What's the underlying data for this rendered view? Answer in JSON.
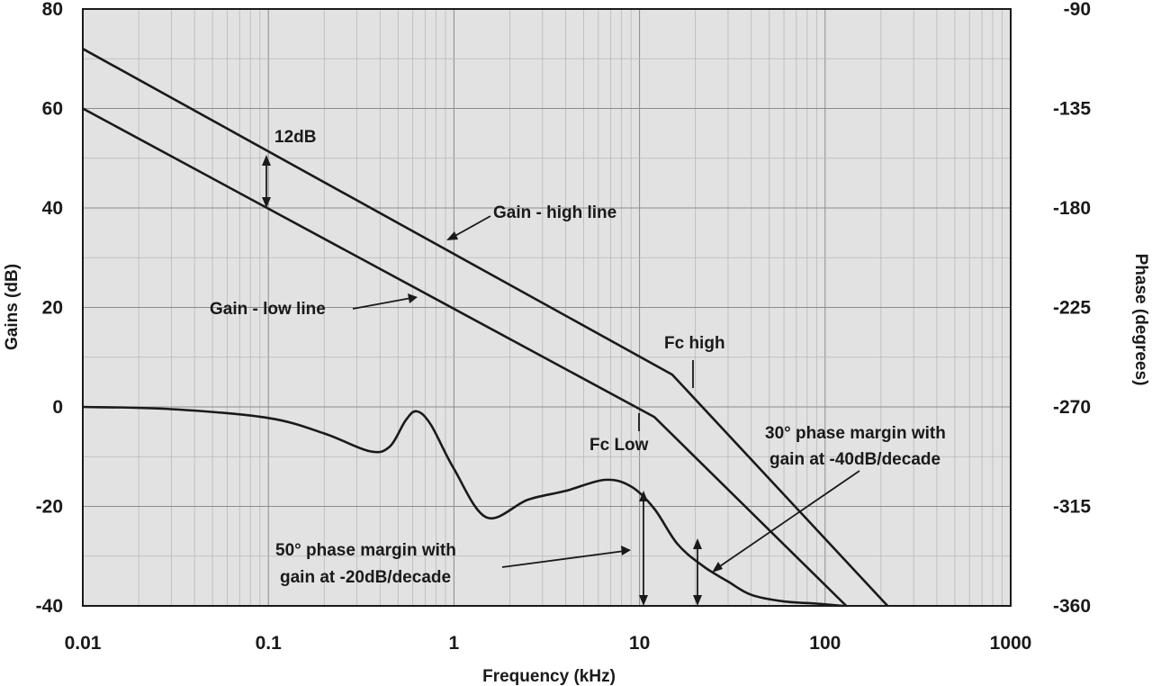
{
  "chart_data": {
    "type": "line",
    "title": "",
    "xlabel": "Frequency (kHz)",
    "ylabel": "Gains (dB)",
    "y2label": "Phase (degrees)",
    "xscale": "log",
    "xlim": [
      0.01,
      1000
    ],
    "ylim": [
      -40,
      80
    ],
    "y2lim": [
      -360,
      -90
    ],
    "grid": true,
    "x_ticks": [
      {
        "value": 0.01,
        "label": "0.01"
      },
      {
        "value": 0.1,
        "label": "0.1"
      },
      {
        "value": 1,
        "label": "1"
      },
      {
        "value": 10,
        "label": "10"
      },
      {
        "value": 100,
        "label": "100"
      },
      {
        "value": 1000,
        "label": "1000"
      }
    ],
    "y_ticks": [
      {
        "value": 80,
        "label": "80"
      },
      {
        "value": 60,
        "label": "60"
      },
      {
        "value": 40,
        "label": "40"
      },
      {
        "value": 20,
        "label": "20"
      },
      {
        "value": 0,
        "label": "0"
      },
      {
        "value": -20,
        "label": "-20"
      },
      {
        "value": -40,
        "label": "-40"
      }
    ],
    "y2_ticks": [
      {
        "value": -90,
        "label": "-90"
      },
      {
        "value": -135,
        "label": "-135"
      },
      {
        "value": -180,
        "label": "-180"
      },
      {
        "value": -225,
        "label": "-225"
      },
      {
        "value": -270,
        "label": "-270"
      },
      {
        "value": -315,
        "label": "-315"
      },
      {
        "value": -360,
        "label": "-360"
      }
    ],
    "series": [
      {
        "name": "Gain - high line",
        "axis": "left",
        "x": [
          0.01,
          15,
          217
        ],
        "y": [
          72,
          6.5,
          -40
        ]
      },
      {
        "name": "Gain - low line",
        "axis": "left",
        "x": [
          0.01,
          12,
          130
        ],
        "y": [
          60,
          -2,
          -40
        ]
      },
      {
        "name": "Phase",
        "axis": "right",
        "x": [
          0.01,
          0.03,
          0.1,
          0.2,
          0.35,
          0.45,
          0.55,
          0.63,
          0.75,
          1.0,
          1.5,
          2.5,
          4.0,
          6.5,
          9.0,
          12.0,
          16.0,
          22.0,
          30.0,
          40.0,
          60.0,
          90.0,
          125.0
        ],
        "y": [
          -270,
          -271,
          -275,
          -282,
          -290,
          -288,
          -276,
          -272,
          -278,
          -298,
          -320,
          -312,
          -308,
          -303,
          -306,
          -316,
          -332,
          -342,
          -349,
          -355,
          -358,
          -359,
          -360
        ]
      }
    ],
    "annotations": [
      {
        "text": "12dB",
        "x": 0.1,
        "y": 66
      },
      {
        "text": "Gain - high line",
        "x": 2.0,
        "y": 45
      },
      {
        "text": "Gain - low line",
        "x": 0.2,
        "y": 25
      },
      {
        "text": "Fc high",
        "x": 25,
        "y": 13
      },
      {
        "text": "Fc Low",
        "x": 12,
        "y": -8
      },
      {
        "text": "30° phase margin with",
        "x": 100,
        "y": -13
      },
      {
        "text": "gain at -40dB/decade",
        "x": 100,
        "y": -18
      },
      {
        "text": "50° phase margin with",
        "x": 1,
        "y": -28
      },
      {
        "text": "gain at -20dB/decade",
        "x": 1,
        "y": -33
      }
    ]
  }
}
